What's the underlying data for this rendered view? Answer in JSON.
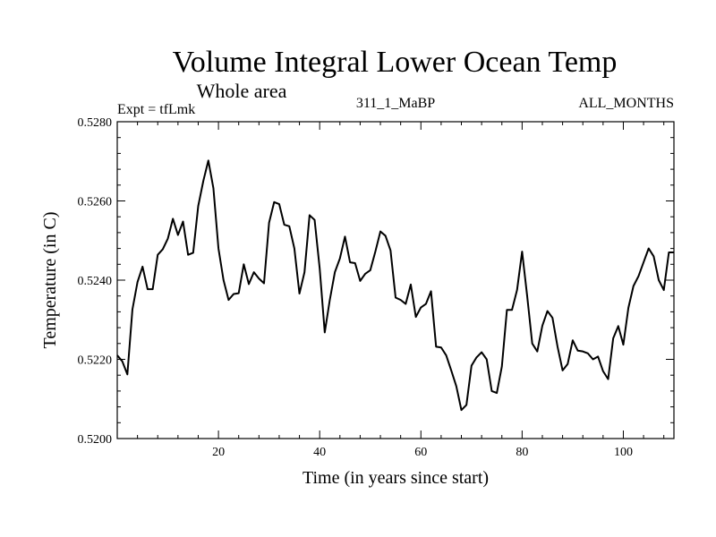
{
  "chart_data": {
    "type": "line",
    "title": "Volume Integral Lower Ocean Temp",
    "subtitle": "Whole area",
    "experiment": "Expt = tfLmk",
    "run_label": "311_1_MaBP",
    "period": "ALL_MONTHS",
    "xlabel": "Time (in years since start)",
    "ylabel": "Temperature (in C)",
    "xlim": [
      0,
      110
    ],
    "ylim": [
      0.52,
      0.528
    ],
    "x_ticks": [
      20,
      40,
      60,
      80,
      100
    ],
    "x_tick_labels": [
      "20",
      "40",
      "60",
      "80",
      "100"
    ],
    "y_ticks": [
      0.52,
      0.522,
      0.524,
      0.526,
      0.528
    ],
    "y_tick_labels": [
      "0.5200",
      "0.5220",
      "0.5240",
      "0.5260",
      "0.5280"
    ],
    "series": [
      {
        "name": "Volume integral lower ocean temperature",
        "color": "#000000",
        "x": [
          0,
          1,
          2,
          3,
          4,
          5,
          6,
          7,
          8,
          9,
          10,
          11,
          12,
          13,
          14,
          15,
          16,
          17,
          18,
          19,
          20,
          21,
          22,
          23,
          24,
          25,
          26,
          27,
          28,
          29,
          30,
          31,
          32,
          33,
          34,
          35,
          36,
          37,
          38,
          39,
          40,
          41,
          42,
          43,
          44,
          45,
          46,
          47,
          48,
          49,
          50,
          51,
          52,
          53,
          54,
          55,
          56,
          57,
          58,
          59,
          60,
          61,
          62,
          63,
          64,
          65,
          66,
          67,
          68,
          69,
          70,
          71,
          72,
          73,
          74,
          75,
          76,
          77,
          78,
          79,
          80,
          81,
          82,
          83,
          84,
          85,
          86,
          87,
          88,
          89,
          90,
          91,
          92,
          93,
          94,
          95,
          96,
          97,
          98,
          99,
          100,
          101,
          102,
          103,
          104,
          105,
          106,
          107,
          108,
          109,
          110
        ],
        "values": [
          0.5221,
          0.52195,
          0.52162,
          0.52326,
          0.52395,
          0.52434,
          0.52377,
          0.52377,
          0.52464,
          0.52478,
          0.52505,
          0.52555,
          0.52514,
          0.52548,
          0.52464,
          0.52469,
          0.52587,
          0.5265,
          0.52702,
          0.52632,
          0.5248,
          0.524,
          0.5235,
          0.52365,
          0.52367,
          0.5244,
          0.5239,
          0.5242,
          0.52404,
          0.52392,
          0.52545,
          0.52597,
          0.52592,
          0.5254,
          0.52536,
          0.5248,
          0.52366,
          0.5242,
          0.52564,
          0.52552,
          0.5243,
          0.52268,
          0.5235,
          0.5242,
          0.52455,
          0.5251,
          0.52445,
          0.52443,
          0.52398,
          0.52416,
          0.52425,
          0.52472,
          0.52523,
          0.52512,
          0.52475,
          0.52356,
          0.5235,
          0.5234,
          0.52389,
          0.52307,
          0.52331,
          0.5234,
          0.52372,
          0.52232,
          0.5223,
          0.5221,
          0.52172,
          0.52132,
          0.52072,
          0.52085,
          0.52184,
          0.52205,
          0.52218,
          0.522,
          0.5212,
          0.52115,
          0.52182,
          0.52325,
          0.52325,
          0.52375,
          0.52472,
          0.5236,
          0.5224,
          0.5222,
          0.52285,
          0.52322,
          0.52305,
          0.52232,
          0.52172,
          0.52188,
          0.52248,
          0.52222,
          0.5222,
          0.52215,
          0.522,
          0.52207,
          0.5217,
          0.5215,
          0.52253,
          0.52284,
          0.52237,
          0.5233,
          0.52385,
          0.5241,
          0.52445,
          0.5248,
          0.5246,
          0.524,
          0.52375,
          0.5247,
          0.5247
        ]
      }
    ]
  }
}
